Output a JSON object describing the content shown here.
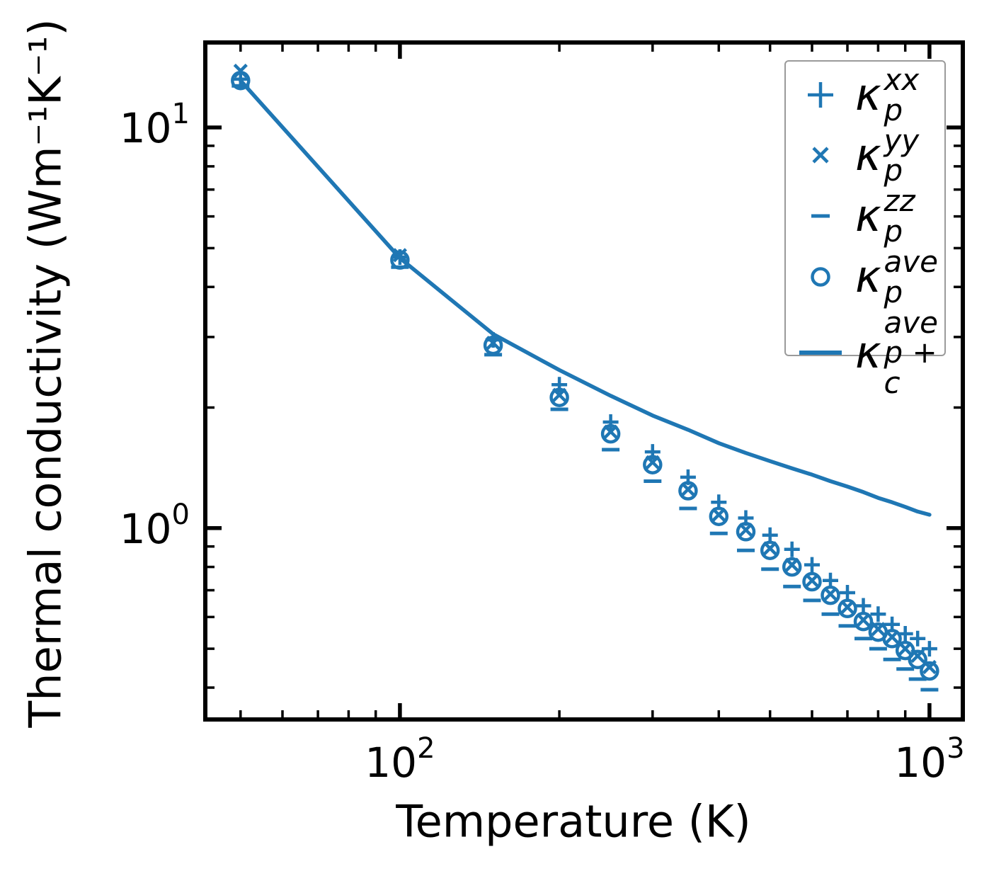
{
  "chart_data": {
    "type": "scatter",
    "title": "",
    "xlabel": "Temperature (K)",
    "ylabel": "Thermal conductivity (Wm⁻¹K⁻¹)",
    "x_scale": "log",
    "y_scale": "log",
    "xlim": [
      42.9,
      1156
    ],
    "ylim": [
      0.333,
      16.3
    ],
    "grid": false,
    "legend_position": "upper right",
    "accent_color": "#1f77b4",
    "axes_color": "#000000",
    "legend_border_color": "#9a9a9a",
    "temperatures_K": [
      50,
      100,
      150,
      200,
      250,
      300,
      350,
      400,
      450,
      500,
      550,
      600,
      650,
      700,
      750,
      800,
      850,
      900,
      950,
      1000
    ],
    "series": [
      {
        "name": "κ_p^xx",
        "marker": "plus",
        "values": [
          13.2,
          4.75,
          2.95,
          2.28,
          1.84,
          1.55,
          1.34,
          1.16,
          1.06,
          0.96,
          0.885,
          0.81,
          0.74,
          0.69,
          0.64,
          0.61,
          0.575,
          0.545,
          0.53,
          0.5
        ]
      },
      {
        "name": "κ_p^yy",
        "marker": "cross",
        "values": [
          13.85,
          4.8,
          2.9,
          2.15,
          1.74,
          1.46,
          1.25,
          1.08,
          0.99,
          0.89,
          0.81,
          0.74,
          0.685,
          0.635,
          0.59,
          0.56,
          0.535,
          0.5,
          0.48,
          0.45
        ]
      },
      {
        "name": "κ_p^zz",
        "marker": "dash",
        "values": [
          12.7,
          4.48,
          2.71,
          1.98,
          1.57,
          1.31,
          1.12,
          0.97,
          0.88,
          0.79,
          0.715,
          0.66,
          0.61,
          0.57,
          0.53,
          0.5,
          0.47,
          0.445,
          0.42,
          0.395
        ]
      },
      {
        "name": "κ_p^ave",
        "marker": "circle",
        "values": [
          13.1,
          4.67,
          2.86,
          2.12,
          1.72,
          1.44,
          1.24,
          1.07,
          0.98,
          0.88,
          0.8,
          0.735,
          0.68,
          0.63,
          0.585,
          0.55,
          0.53,
          0.495,
          0.47,
          0.44
        ]
      },
      {
        "name": "κ_p+c^ave",
        "marker": "line",
        "values": [
          13.1,
          4.72,
          3.05,
          2.48,
          2.14,
          1.91,
          1.76,
          1.63,
          1.54,
          1.47,
          1.41,
          1.36,
          1.31,
          1.27,
          1.23,
          1.19,
          1.16,
          1.13,
          1.1,
          1.08
        ]
      }
    ],
    "x_ticks": {
      "major": [
        {
          "value": 100,
          "base": "10",
          "exp": "2"
        },
        {
          "value": 1000,
          "base": "10",
          "exp": "3"
        }
      ],
      "minor": [
        50,
        60,
        70,
        80,
        90,
        200,
        300,
        400,
        500,
        600,
        700,
        800,
        900
      ]
    },
    "y_ticks": {
      "major": [
        {
          "value": 10,
          "base": "10",
          "exp": "1"
        },
        {
          "value": 1,
          "base": "10",
          "exp": "0"
        }
      ],
      "minor": [
        0.4,
        0.5,
        0.6,
        0.7,
        0.8,
        0.9,
        2,
        3,
        4,
        5,
        6,
        7,
        8,
        9
      ]
    },
    "legend": {
      "entries": [
        {
          "marker": "plus",
          "symbol": "κ",
          "sup": "xx",
          "sub": "p"
        },
        {
          "marker": "cross",
          "symbol": "κ",
          "sup": "yy",
          "sub": "p"
        },
        {
          "marker": "dash",
          "symbol": "κ",
          "sup": "zz",
          "sub": "p"
        },
        {
          "marker": "circle",
          "symbol": "κ",
          "sup": "ave",
          "sub": "p"
        },
        {
          "marker": "line",
          "symbol": "κ",
          "sup": "ave",
          "sub": "p + c"
        }
      ]
    }
  }
}
